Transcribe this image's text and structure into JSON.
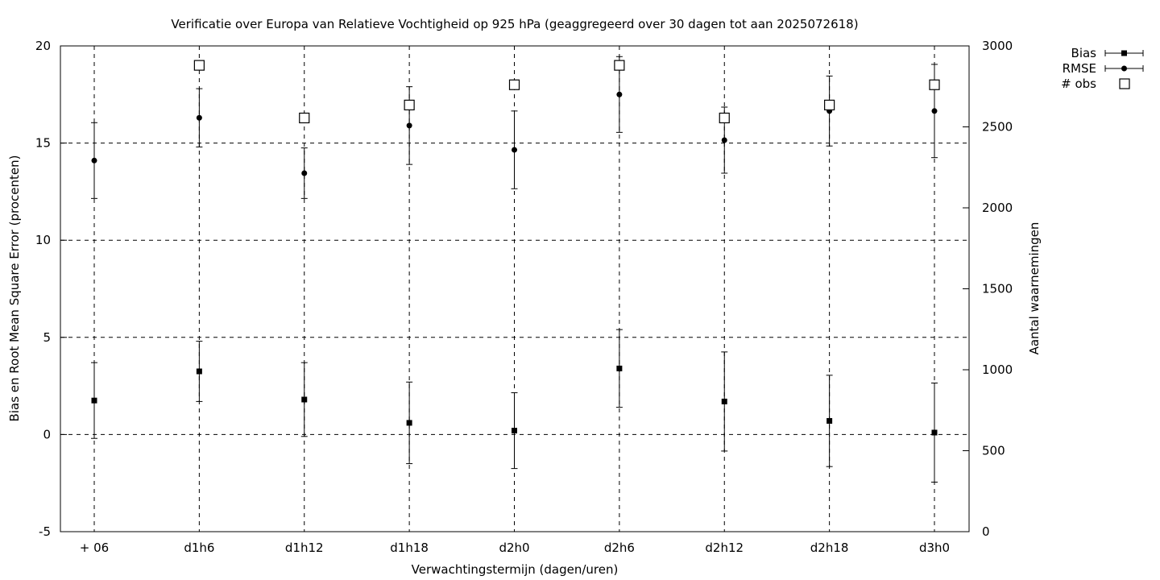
{
  "chart_data": {
    "type": "scatter",
    "title": "Verificatie over Europa van Relatieve Vochtigheid op 925 hPa (geaggregeerd over 30 dagen tot aan 2025072618)",
    "xlabel": "Verwachtingstermijn (dagen/uren)",
    "ylabel": "Bias en Root Mean Square Error (procenten)",
    "y2label": "Aantal waarnemingen",
    "categories": [
      "+ 06",
      "d1h6",
      "d1h12",
      "d1h18",
      "d2h0",
      "d2h6",
      "d2h12",
      "d2h18",
      "d3h0"
    ],
    "ylim": [
      -5,
      20
    ],
    "yticks": [
      -5,
      0,
      5,
      10,
      15,
      20
    ],
    "y2lim": [
      0,
      3000
    ],
    "y2ticks": [
      0,
      500,
      1000,
      1500,
      2000,
      2500,
      3000
    ],
    "grid": true,
    "legend_position": "top-right",
    "series": [
      {
        "name": "Bias",
        "marker": "square",
        "axis": "left",
        "values": [
          1.75,
          3.25,
          1.8,
          0.6,
          0.2,
          3.4,
          1.7,
          0.7,
          0.1
        ],
        "error": [
          1.95,
          1.55,
          1.9,
          2.1,
          1.95,
          2.0,
          2.55,
          2.35,
          2.55
        ]
      },
      {
        "name": "RMSE",
        "marker": "circle",
        "axis": "left",
        "values": [
          14.1,
          16.3,
          13.45,
          15.9,
          14.65,
          17.5,
          15.15,
          16.65,
          16.65
        ],
        "error": [
          1.95,
          1.5,
          1.3,
          2.0,
          2.0,
          1.95,
          1.7,
          1.8,
          2.4
        ]
      },
      {
        "name": "# obs",
        "marker": "open-square",
        "axis": "right",
        "values": [
          null,
          2880,
          2555,
          2635,
          2760,
          2880,
          2555,
          2635,
          2760
        ]
      }
    ]
  }
}
